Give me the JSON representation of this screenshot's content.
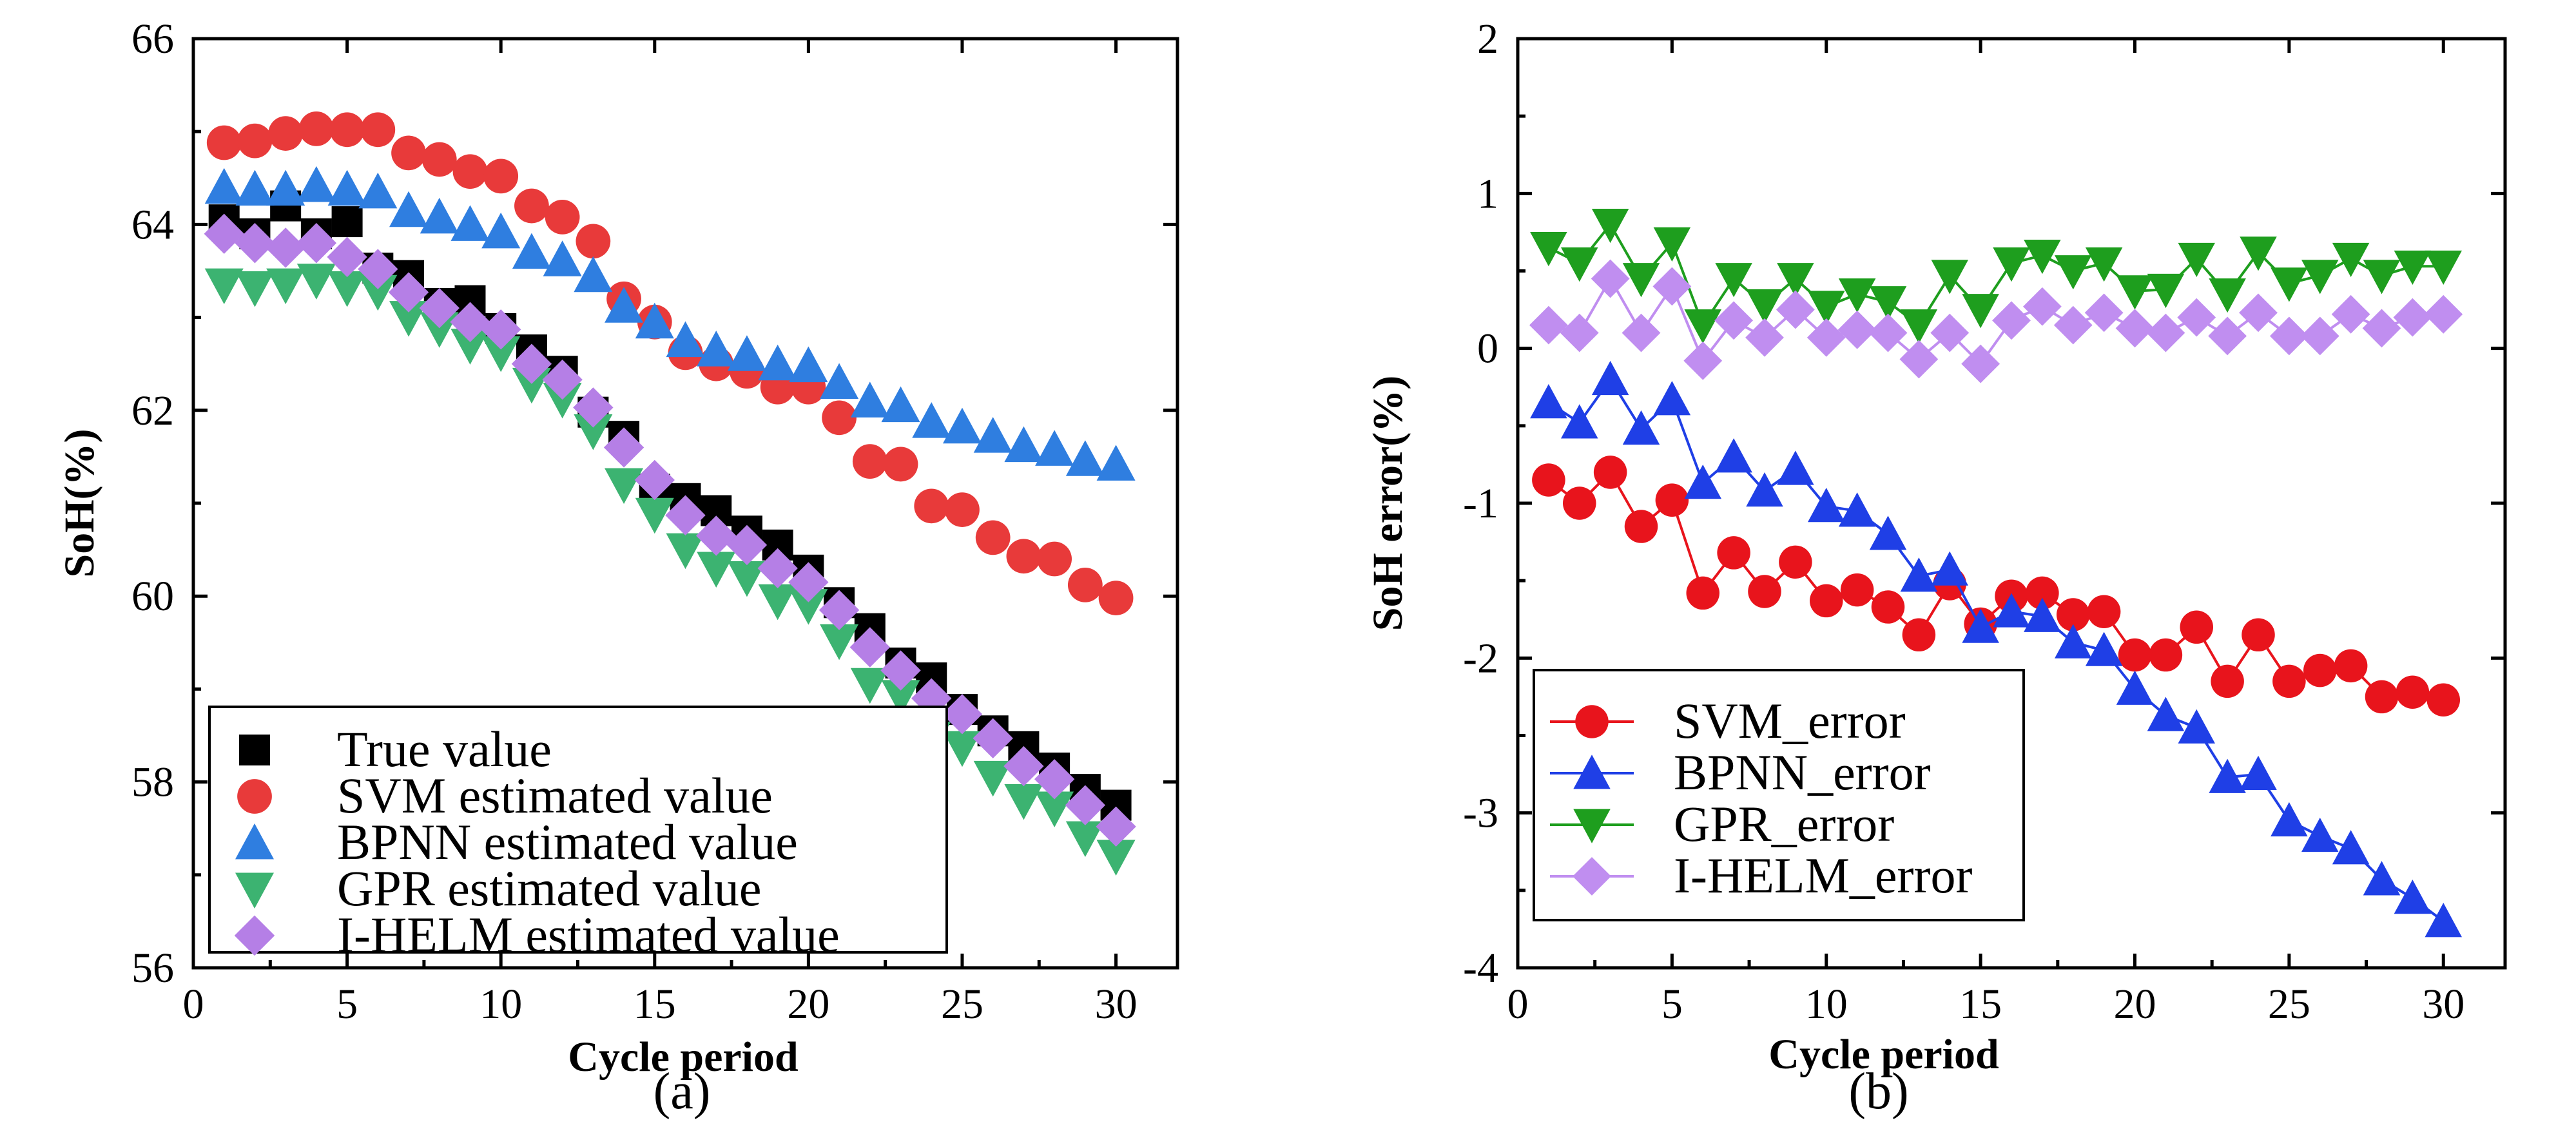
{
  "chart_data": [
    {
      "type": "scatter",
      "panel_label": "(a)",
      "xlabel": "Cycle period",
      "ylabel": "SoH(%)",
      "xlim": [
        0,
        32
      ],
      "ylim": [
        56,
        66
      ],
      "xticks": [
        "0",
        "5",
        "10",
        "15",
        "20",
        "25",
        "30"
      ],
      "yticks": [
        "56",
        "58",
        "60",
        "62",
        "64",
        "66"
      ],
      "legend_position": "bottom-left",
      "x": [
        1,
        2,
        3,
        4,
        5,
        6,
        7,
        8,
        9,
        10,
        11,
        12,
        13,
        14,
        15,
        16,
        17,
        18,
        19,
        20,
        21,
        22,
        23,
        24,
        25,
        26,
        27,
        28,
        29,
        30
      ],
      "series": [
        {
          "name": "True value",
          "marker": "square",
          "color": "#000000",
          "values": [
            64.05,
            63.9,
            64.2,
            63.9,
            64.03,
            63.53,
            63.45,
            63.15,
            63.18,
            62.88,
            62.65,
            62.42,
            61.98,
            61.72,
            61.15,
            61.05,
            60.92,
            60.7,
            60.55,
            60.28,
            59.93,
            59.65,
            59.28,
            59.12,
            58.78,
            58.55,
            58.38,
            58.15,
            57.92,
            57.75
          ]
        },
        {
          "name": " SVM estimated value",
          "marker": "circle",
          "color": "#e83a3a",
          "values": [
            64.88,
            64.9,
            64.98,
            65.03,
            65.02,
            65.02,
            64.77,
            64.7,
            64.57,
            64.52,
            64.2,
            64.08,
            63.82,
            63.2,
            62.95,
            62.62,
            62.5,
            62.42,
            62.25,
            62.25,
            61.92,
            61.45,
            61.42,
            60.97,
            60.93,
            60.63,
            60.43,
            60.4,
            60.12,
            59.98
          ]
        },
        {
          "name": "BPNN estimated value",
          "marker": "triangle-up",
          "color": "#2f7ee0",
          "values": [
            64.4,
            64.38,
            64.38,
            64.42,
            64.38,
            64.35,
            64.15,
            64.08,
            64.0,
            63.92,
            63.7,
            63.62,
            63.45,
            63.12,
            62.95,
            62.75,
            62.65,
            62.6,
            62.5,
            62.48,
            62.3,
            62.1,
            62.05,
            61.88,
            61.82,
            61.72,
            61.62,
            61.58,
            61.47,
            61.42
          ]
        },
        {
          "name": "GPR estimated value",
          "marker": "triangle-down",
          "color": "#3cb371",
          "values": [
            63.35,
            63.32,
            63.35,
            63.4,
            63.32,
            63.28,
            63.0,
            62.88,
            62.7,
            62.62,
            62.28,
            62.12,
            61.78,
            61.2,
            60.88,
            60.5,
            60.3,
            60.2,
            59.95,
            59.9,
            59.52,
            59.05,
            58.92,
            58.47,
            58.37,
            58.05,
            57.8,
            57.72,
            57.4,
            57.2
          ]
        },
        {
          "name": "I-HELM estimated value",
          "marker": "diamond",
          "color": "#b57fe6",
          "values": [
            63.9,
            63.8,
            63.75,
            63.8,
            63.65,
            63.52,
            63.27,
            63.1,
            62.95,
            62.87,
            62.5,
            62.33,
            62.03,
            61.6,
            61.25,
            60.87,
            60.65,
            60.55,
            60.3,
            60.15,
            59.85,
            59.45,
            59.2,
            58.9,
            58.73,
            58.47,
            58.17,
            58.03,
            57.75,
            57.52
          ]
        }
      ]
    },
    {
      "type": "line",
      "panel_label": "(b)",
      "xlabel": "Cycle period",
      "ylabel": "SoH error(%)",
      "xlim": [
        0,
        32
      ],
      "ylim": [
        -4,
        2
      ],
      "xticks": [
        "0",
        "5",
        "10",
        "15",
        "20",
        "25",
        "30"
      ],
      "yticks": [
        "-4",
        "-3",
        "-2",
        "-1",
        "0",
        "1",
        "2"
      ],
      "legend_position": "bottom-left",
      "x": [
        1,
        2,
        3,
        4,
        5,
        6,
        7,
        8,
        9,
        10,
        11,
        12,
        13,
        14,
        15,
        16,
        17,
        18,
        19,
        20,
        21,
        22,
        23,
        24,
        25,
        26,
        27,
        28,
        29,
        30
      ],
      "series": [
        {
          "name": "SVM_error",
          "marker": "circle",
          "color": "#e8141c",
          "values": [
            -0.85,
            -1.0,
            -0.8,
            -1.15,
            -0.98,
            -1.58,
            -1.32,
            -1.57,
            -1.38,
            -1.63,
            -1.56,
            -1.67,
            -1.85,
            -1.52,
            -1.78,
            -1.6,
            -1.58,
            -1.72,
            -1.7,
            -1.98,
            -1.98,
            -1.8,
            -2.15,
            -1.85,
            -2.15,
            -2.08,
            -2.05,
            -2.25,
            -2.22,
            -2.27
          ]
        },
        {
          "name": "BPNN_error",
          "marker": "triangle-up",
          "color": "#1f3fe6",
          "values": [
            -0.35,
            -0.48,
            -0.2,
            -0.52,
            -0.33,
            -0.87,
            -0.7,
            -0.92,
            -0.78,
            -1.02,
            -1.05,
            -1.2,
            -1.47,
            -1.43,
            -1.8,
            -1.7,
            -1.73,
            -1.9,
            -1.95,
            -2.2,
            -2.37,
            -2.45,
            -2.77,
            -2.75,
            -3.05,
            -3.15,
            -3.23,
            -3.43,
            -3.55,
            -3.7
          ]
        },
        {
          "name": "GPR_error",
          "marker": "triangle-down",
          "color": "#1e9e1e",
          "values": [
            0.65,
            0.55,
            0.8,
            0.45,
            0.68,
            0.15,
            0.45,
            0.28,
            0.45,
            0.27,
            0.35,
            0.3,
            0.15,
            0.47,
            0.25,
            0.55,
            0.6,
            0.5,
            0.55,
            0.37,
            0.38,
            0.58,
            0.35,
            0.62,
            0.42,
            0.47,
            0.58,
            0.47,
            0.53,
            0.53
          ]
        },
        {
          "name": "I-HELM_error",
          "marker": "diamond",
          "color": "#c08ef0",
          "values": [
            0.15,
            0.1,
            0.45,
            0.1,
            0.4,
            -0.08,
            0.18,
            0.07,
            0.25,
            0.07,
            0.12,
            0.1,
            -0.07,
            0.1,
            -0.1,
            0.18,
            0.27,
            0.15,
            0.23,
            0.13,
            0.1,
            0.2,
            0.08,
            0.23,
            0.08,
            0.08,
            0.22,
            0.13,
            0.2,
            0.22
          ]
        }
      ]
    }
  ]
}
